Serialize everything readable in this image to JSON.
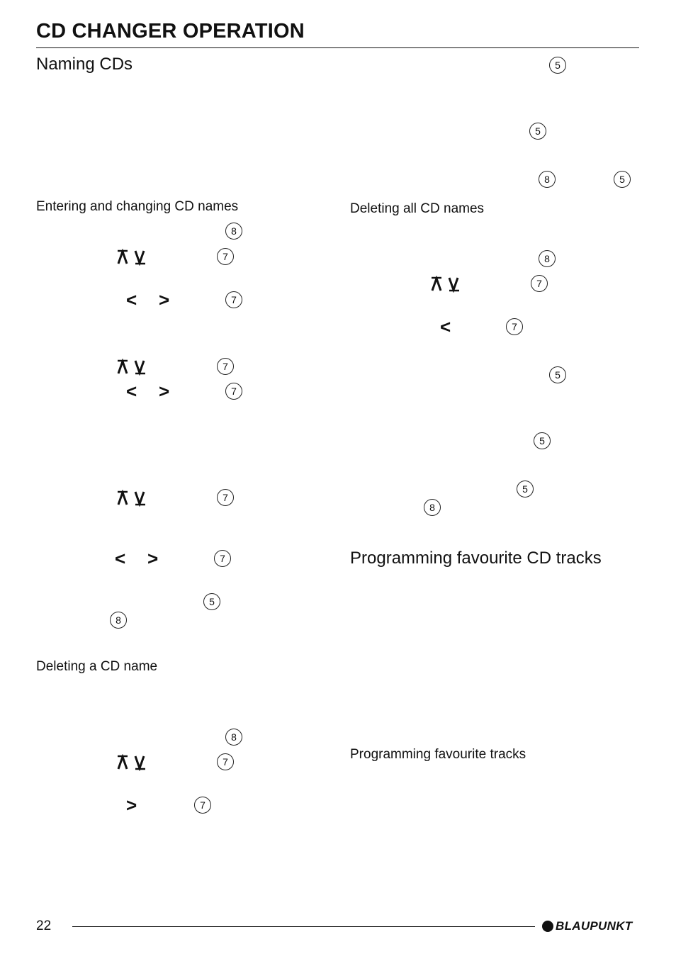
{
  "header": {
    "title": "CD CHANGER OPERATION"
  },
  "headings": {
    "naming": "Naming CDs",
    "entering": "Entering and changing CD names",
    "deleting_one": "Deleting a CD name",
    "deleting_all": "Deleting all CD names",
    "programming": "Programming favourite CD tracks",
    "programming_tracks": "Programming favourite tracks"
  },
  "callouts": {
    "c5": "5",
    "c7": "7",
    "c8": "8"
  },
  "arrows": {
    "left": "<",
    "right": ">"
  },
  "footer": {
    "page_number": "22",
    "brand": "BLAUPUNKT"
  },
  "colors": {
    "text": "#111111",
    "background": "#ffffff"
  }
}
